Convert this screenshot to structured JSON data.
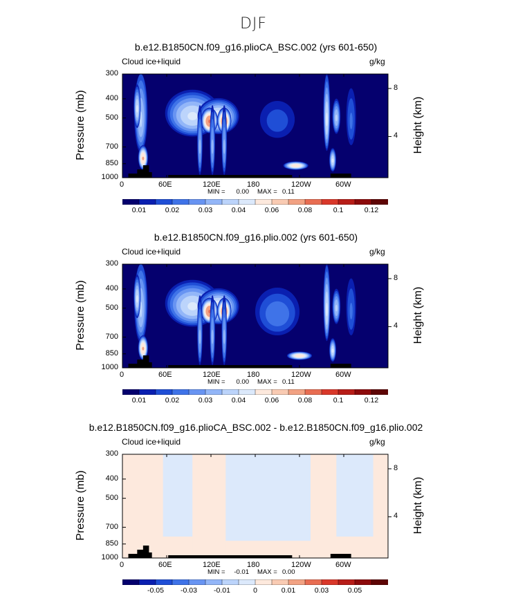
{
  "title": "DJF",
  "colormap": {
    "abs": [
      "#05006e",
      "#0a1fb0",
      "#1f4ed6",
      "#3f73e8",
      "#6894f2",
      "#93b6f8",
      "#bcd4fb",
      "#dce9fb",
      "#fde9dd",
      "#f9cbb3",
      "#f2a283",
      "#e86d52",
      "#d9382a",
      "#b71d18",
      "#8c0a0b",
      "#5e0505"
    ],
    "diff": [
      "#05006e",
      "#0a1fb0",
      "#1f4ed6",
      "#3f73e8",
      "#6894f2",
      "#93b6f8",
      "#bcd4fb",
      "#dce9fb",
      "#fde9dd",
      "#f9cbb3",
      "#f2a283",
      "#e86d52",
      "#d9382a",
      "#b71d18",
      "#8c0a0b",
      "#5e0505"
    ]
  },
  "chart_data": [
    {
      "type": "heatmap",
      "title": "b.e12.B1850CN.f09_g16.plioCA_BSC.002 (yrs 601-650)",
      "left_label": "Cloud ice+liquid",
      "units": "g/kg",
      "ylabel": "Pressure (mb)",
      "y2label": "Height (km)",
      "x_ticks": [
        "0",
        "60E",
        "120E",
        "180",
        "120W",
        "60W"
      ],
      "y_ticks": [
        "300",
        "400",
        "500",
        "700",
        "850",
        "1000"
      ],
      "y2_ticks": [
        "8",
        "4"
      ],
      "min_label": "MIN =",
      "min_value": "0.00",
      "max_label": "MAX =",
      "max_value": "0.11",
      "colorbar_ticks": [
        "0.01",
        "0.02",
        "0.03",
        "0.04",
        "0.06",
        "0.08",
        "0.1",
        "0.12"
      ],
      "colorbar_type": "abs",
      "blobs": [
        {
          "lon": 25,
          "p": 510,
          "dlon": 10,
          "dp": 260,
          "v": 0.03
        },
        {
          "lon": 28,
          "p": 800,
          "dlon": 7,
          "dp": 120,
          "v": 0.05
        },
        {
          "lon": 20,
          "p": 450,
          "dlon": 5,
          "dp": 120,
          "v": 0.035
        },
        {
          "lon": 95,
          "p": 490,
          "dlon": 40,
          "dp": 140,
          "v": 0.035
        },
        {
          "lon": 130,
          "p": 500,
          "dlon": 30,
          "dp": 110,
          "v": 0.04
        },
        {
          "lon": 118,
          "p": 520,
          "dlon": 12,
          "dp": 80,
          "v": 0.06
        },
        {
          "lon": 138,
          "p": 520,
          "dlon": 10,
          "dp": 80,
          "v": 0.06
        },
        {
          "lon": 105,
          "p": 700,
          "dlon": 4,
          "dp": 300,
          "v": 0.025
        },
        {
          "lon": 122,
          "p": 700,
          "dlon": 4,
          "dp": 300,
          "v": 0.025
        },
        {
          "lon": 138,
          "p": 700,
          "dlon": 4,
          "dp": 300,
          "v": 0.025
        },
        {
          "lon": 210,
          "p": 520,
          "dlon": 30,
          "dp": 140,
          "v": 0.012
        },
        {
          "lon": 235,
          "p": 870,
          "dlon": 18,
          "dp": 45,
          "v": 0.045
        },
        {
          "lon": 277,
          "p": 510,
          "dlon": 5,
          "dp": 240,
          "v": 0.035
        },
        {
          "lon": 290,
          "p": 500,
          "dlon": 6,
          "dp": 110,
          "v": 0.03
        },
        {
          "lon": 285,
          "p": 820,
          "dlon": 5,
          "dp": 120,
          "v": 0.035
        },
        {
          "lon": 310,
          "p": 520,
          "dlon": 8,
          "dp": 200,
          "v": 0.015
        }
      ]
    },
    {
      "type": "heatmap",
      "title": "b.e12.B1850CN.f09_g16.plio.002 (yrs 601-650)",
      "left_label": "Cloud ice+liquid",
      "units": "g/kg",
      "ylabel": "Pressure (mb)",
      "y2label": "Height (km)",
      "x_ticks": [
        "0",
        "60E",
        "120E",
        "180",
        "120W",
        "60W"
      ],
      "y_ticks": [
        "300",
        "400",
        "500",
        "700",
        "850",
        "1000"
      ],
      "y2_ticks": [
        "8",
        "4"
      ],
      "min_label": "MIN =",
      "min_value": "0.00",
      "max_label": "MAX =",
      "max_value": "0.11",
      "colorbar_ticks": [
        "0.01",
        "0.02",
        "0.03",
        "0.04",
        "0.06",
        "0.08",
        "0.1",
        "0.12"
      ],
      "colorbar_type": "abs",
      "blobs": [
        {
          "lon": 25,
          "p": 510,
          "dlon": 10,
          "dp": 260,
          "v": 0.03
        },
        {
          "lon": 28,
          "p": 800,
          "dlon": 7,
          "dp": 120,
          "v": 0.05
        },
        {
          "lon": 20,
          "p": 450,
          "dlon": 5,
          "dp": 120,
          "v": 0.035
        },
        {
          "lon": 95,
          "p": 490,
          "dlon": 40,
          "dp": 140,
          "v": 0.035
        },
        {
          "lon": 130,
          "p": 500,
          "dlon": 30,
          "dp": 110,
          "v": 0.04
        },
        {
          "lon": 118,
          "p": 520,
          "dlon": 12,
          "dp": 80,
          "v": 0.06
        },
        {
          "lon": 138,
          "p": 520,
          "dlon": 10,
          "dp": 80,
          "v": 0.06
        },
        {
          "lon": 105,
          "p": 700,
          "dlon": 4,
          "dp": 300,
          "v": 0.025
        },
        {
          "lon": 122,
          "p": 700,
          "dlon": 4,
          "dp": 300,
          "v": 0.025
        },
        {
          "lon": 138,
          "p": 700,
          "dlon": 4,
          "dp": 300,
          "v": 0.025
        },
        {
          "lon": 210,
          "p": 540,
          "dlon": 35,
          "dp": 170,
          "v": 0.018
        },
        {
          "lon": 240,
          "p": 870,
          "dlon": 18,
          "dp": 45,
          "v": 0.045
        },
        {
          "lon": 277,
          "p": 510,
          "dlon": 5,
          "dp": 240,
          "v": 0.035
        },
        {
          "lon": 290,
          "p": 500,
          "dlon": 6,
          "dp": 110,
          "v": 0.03
        },
        {
          "lon": 285,
          "p": 820,
          "dlon": 5,
          "dp": 120,
          "v": 0.035
        },
        {
          "lon": 310,
          "p": 520,
          "dlon": 8,
          "dp": 200,
          "v": 0.015
        }
      ]
    },
    {
      "type": "heatmap",
      "title": "b.e12.B1850CN.f09_g16.plioCA_BSC.002 - b.e12.B1850CN.f09_g16.plio.002",
      "left_label": "Cloud ice+liquid",
      "units": "g/kg",
      "ylabel": "Pressure (mb)",
      "y2label": "Height (km)",
      "x_ticks": [
        "0",
        "60E",
        "120E",
        "180",
        "120W",
        "60W"
      ],
      "y_ticks": [
        "300",
        "400",
        "500",
        "700",
        "850",
        "1000"
      ],
      "y2_ticks": [
        "8",
        "4"
      ],
      "min_label": "MIN =",
      "min_value": "-0.01",
      "max_label": "MAX =",
      "max_value": "0.00",
      "colorbar_ticks": [
        "-0.05",
        "-0.03",
        "-0.01",
        "0",
        "0.01",
        "0.03",
        "0.05"
      ],
      "colorbar_type": "diff",
      "bands": [
        {
          "lon0": 0,
          "lon1": 55,
          "p0": 300,
          "p1": 1000,
          "sign": 1
        },
        {
          "lon0": 55,
          "lon1": 95,
          "p0": 300,
          "p1": 780,
          "sign": -1
        },
        {
          "lon0": 95,
          "lon1": 140,
          "p0": 300,
          "p1": 1000,
          "sign": 1
        },
        {
          "lon0": 140,
          "lon1": 255,
          "p0": 300,
          "p1": 820,
          "sign": -1
        },
        {
          "lon0": 140,
          "lon1": 255,
          "p0": 820,
          "p1": 1000,
          "sign": 1
        },
        {
          "lon0": 255,
          "lon1": 290,
          "p0": 300,
          "p1": 1000,
          "sign": 1
        },
        {
          "lon0": 290,
          "lon1": 340,
          "p0": 300,
          "p1": 780,
          "sign": -1
        },
        {
          "lon0": 340,
          "lon1": 360,
          "p0": 300,
          "p1": 1000,
          "sign": 1
        }
      ]
    }
  ]
}
